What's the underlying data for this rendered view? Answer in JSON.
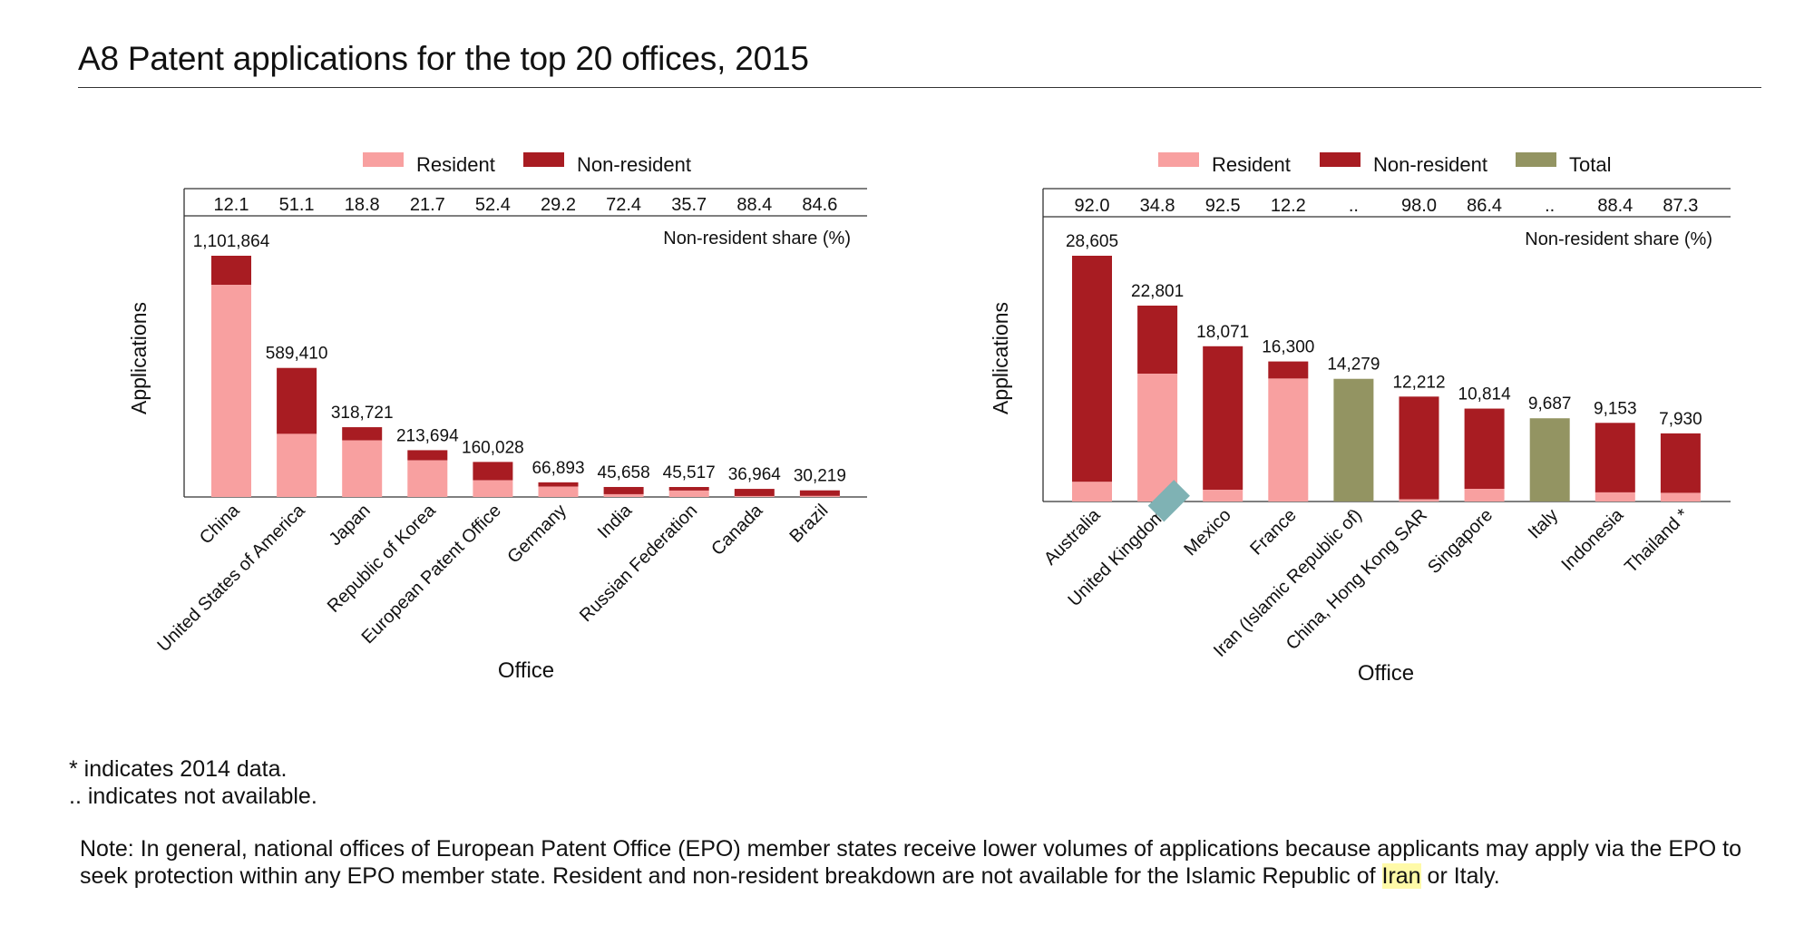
{
  "page": {
    "title": "A8 Patent applications for the top 20 offices, 2015",
    "footnote_star": "* indicates 2014 data.",
    "footnote_na": ".. indicates not available.",
    "note_before": "Note: In general, national offices of European Patent Office (EPO) member states receive lower volumes of applications because applicants may apply via the EPO to seek protection within any EPO member state. Resident and non-resident breakdown are not available for the Islamic Republic of ",
    "note_highlight": "Iran",
    "note_after": " or Italy."
  },
  "colors": {
    "resident": "#f8a0a0",
    "non_resident": "#a81c22",
    "total": "#939462",
    "axis": "#333333",
    "search_highlight": "#7fb2b4"
  },
  "chart_data": [
    {
      "type": "bar",
      "stacked": true,
      "xlabel": "Office",
      "ylabel": "Applications",
      "share_label": "Non-resident share (%)",
      "legend": [
        "Resident",
        "Non-resident"
      ],
      "categories": [
        "China",
        "United States of America",
        "Japan",
        "Republic of Korea",
        "European Patent Office",
        "Germany",
        "India",
        "Russian Federation",
        "Canada",
        "Brazil"
      ],
      "totals": [
        1101864,
        589410,
        318721,
        213694,
        160028,
        66893,
        45658,
        45517,
        36964,
        30219
      ],
      "total_labels": [
        "1,101,864",
        "589,410",
        "318,721",
        "213,694",
        "160,028",
        "66,893",
        "45,658",
        "45,517",
        "36,964",
        "30,219"
      ],
      "nonresident_share": [
        "12.1",
        "51.1",
        "18.8",
        "21.7",
        "52.4",
        "29.2",
        "72.4",
        "35.7",
        "88.4",
        "84.6"
      ],
      "ylim": [
        0,
        1101864
      ]
    },
    {
      "type": "bar",
      "stacked": true,
      "xlabel": "Office",
      "ylabel": "Applications",
      "share_label": "Non-resident share (%)",
      "legend": [
        "Resident",
        "Non-resident",
        "Total"
      ],
      "categories": [
        "Australia",
        "United Kingdom",
        "Mexico",
        "France",
        "Iran (Islamic Republic of)",
        "China, Hong Kong SAR",
        "Singapore",
        "Italy",
        "Indonesia",
        "Thailand *"
      ],
      "highlight_word": "Iran",
      "totals": [
        28605,
        22801,
        18071,
        16300,
        14279,
        12212,
        10814,
        9687,
        9153,
        7930
      ],
      "total_labels": [
        "28,605",
        "22,801",
        "18,071",
        "16,300",
        "14,279",
        "12,212",
        "10,814",
        "9,687",
        "9,153",
        "7,930"
      ],
      "nonresident_share": [
        "92.0",
        "34.8",
        "92.5",
        "12.2",
        "..",
        "98.0",
        "86.4",
        "..",
        "88.4",
        "87.3"
      ],
      "ylim": [
        0,
        28605
      ]
    }
  ]
}
